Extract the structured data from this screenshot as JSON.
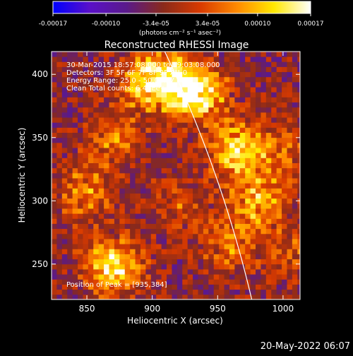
{
  "chart_data": {
    "type": "heatmap",
    "title": "Reconstructed RHESSI Image",
    "xlabel": "Heliocentric X (arcsec)",
    "ylabel": "Heliocentric Y (arcsec)",
    "xlim": [
      823,
      1013
    ],
    "ylim": [
      222,
      418
    ],
    "x_ticks": [
      "850",
      "900",
      "950",
      "1000"
    ],
    "x_tick_values": [
      850,
      900,
      950,
      1000
    ],
    "y_ticks": [
      "250",
      "300",
      "350",
      "400"
    ],
    "y_tick_values": [
      250,
      300,
      350,
      400
    ],
    "colorbar": {
      "labels": [
        "-0.00017",
        "-0.00010",
        "-3.4e-05",
        "3.4e-05",
        "0.00010",
        "0.00017"
      ],
      "values": [
        -0.00017,
        -0.0001,
        -3.4e-05,
        3.4e-05,
        0.0001,
        0.00017
      ],
      "range": [
        -0.00017,
        0.00017
      ],
      "units": "(photons cm⁻² s⁻¹ asec⁻²)",
      "colors": [
        "#0000ff",
        "#5a10c8",
        "#5a1a8a",
        "#8a2a1a",
        "#d83a00",
        "#ff8a00",
        "#ffe800",
        "#ffffff"
      ]
    },
    "annotations": {
      "time": "30-Mar-2015 18:57:08.000 to 19:03:08.000",
      "detectors": "Detectors: 3F 5F 6F 7F 8F 9F  Att 0",
      "energy": "Energy Range: 25.0 - 50.0 keV",
      "method": "Clean     Total counts: 6.44Ee+04",
      "peak": "Position of Peak = [935,384]"
    },
    "sources": [
      {
        "x": 870,
        "y": 248,
        "value": 0.00017
      },
      {
        "x": 895,
        "y": 395,
        "value": 0.00013
      },
      {
        "x": 915,
        "y": 395,
        "value": 0.00012
      },
      {
        "x": 935,
        "y": 384,
        "value": 0.00017
      },
      {
        "x": 965,
        "y": 340,
        "value": 0.00015
      },
      {
        "x": 980,
        "y": 300,
        "value": 0.00012
      },
      {
        "x": 870,
        "y": 350,
        "value": 9e-05
      },
      {
        "x": 848,
        "y": 305,
        "value": 0.0001
      },
      {
        "x": 960,
        "y": 265,
        "value": 8e-05
      },
      {
        "x": 1000,
        "y": 340,
        "value": 7e-05
      },
      {
        "x": 1005,
        "y": 260,
        "value": 6e-05
      },
      {
        "x": 920,
        "y": 300,
        "value": 6e-05
      }
    ]
  },
  "footer": {
    "timestamp": "20-May-2022 06:07"
  }
}
